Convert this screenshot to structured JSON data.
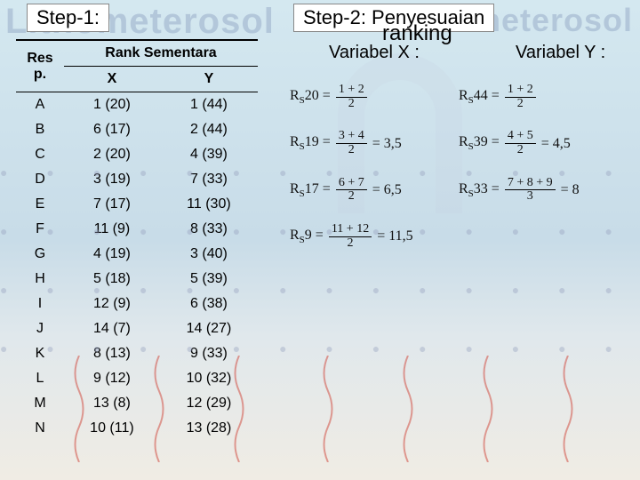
{
  "bg": {
    "left": "Lithometerosol",
    "right": "Hidrometerosol"
  },
  "steps": {
    "step1": "Step-1:",
    "step2": "Step-2: Penyesuaian",
    "ranking": "ranking",
    "varX": "Variabel X :",
    "varY": "Variabel Y :"
  },
  "table": {
    "col_resp": "Res p.",
    "col_group": "Rank Sementara",
    "col_x": "X",
    "col_y": "Y",
    "rows": [
      {
        "r": "A",
        "x": "1 (20)",
        "y": "1 (44)"
      },
      {
        "r": "B",
        "x": "6 (17)",
        "y": "2 (44)"
      },
      {
        "r": "C",
        "x": "2 (20)",
        "y": "4 (39)"
      },
      {
        "r": "D",
        "x": "3 (19)",
        "y": "7 (33)"
      },
      {
        "r": "E",
        "x": "7 (17)",
        "y": "11 (30)"
      },
      {
        "r": "F",
        "x": "11 (9)",
        "y": "8 (33)"
      },
      {
        "r": "G",
        "x": "4 (19)",
        "y": "3 (40)"
      },
      {
        "r": "H",
        "x": "5 (18)",
        "y": "5 (39)"
      },
      {
        "r": "I",
        "x": "12 (9)",
        "y": "6 (38)"
      },
      {
        "r": "J",
        "x": "14 (7)",
        "y": "14 (27)"
      },
      {
        "r": "K",
        "x": "8 (13)",
        "y": "9 (33)"
      },
      {
        "r": "L",
        "x": "9 (12)",
        "y": "10 (32)"
      },
      {
        "r": "M",
        "x": "13 (8)",
        "y": "12 (29)"
      },
      {
        "r": "N",
        "x": "10 (11)",
        "y": "13 (28)"
      }
    ]
  },
  "formulas": [
    {
      "l": "20",
      "ln": "1 + 2",
      "ld": "2",
      "r": "44",
      "rn": "1 + 2",
      "rd": "2"
    },
    {
      "l": "19",
      "ln": "3 + 4",
      "ld": "2",
      "lres": "= 3,5",
      "r": "39",
      "rn": "4 + 5",
      "rd": "2",
      "rres": "= 4,5"
    },
    {
      "l": "17",
      "ln": "6 + 7",
      "ld": "2",
      "lres": "= 6,5",
      "r": "33",
      "rn": "7 + 8 + 9",
      "rd": "3",
      "rres": "= 8"
    },
    {
      "l": "9",
      "ln": "11 + 12",
      "ld": "2",
      "lres": "= 11,5"
    }
  ],
  "fprefix": "R",
  "fsub": "S",
  "eq": "="
}
